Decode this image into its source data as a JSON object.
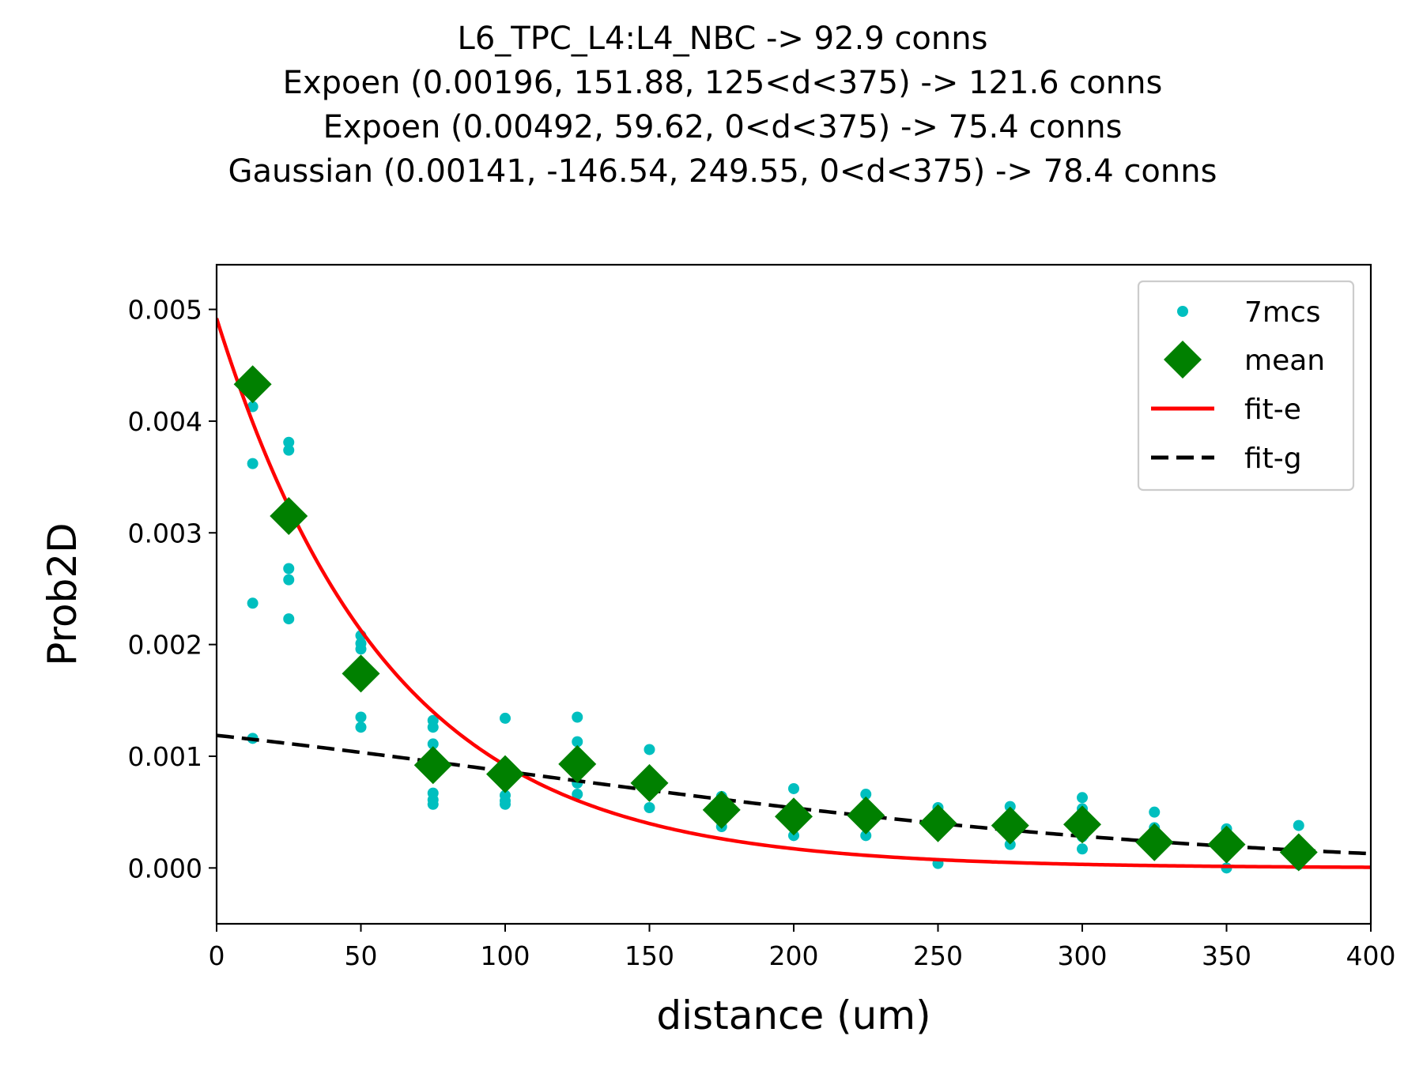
{
  "chart_data": {
    "type": "scatter",
    "title_lines": [
      "L6_TPC_L4:L4_NBC -> 92.9 conns",
      "Expoen (0.00196, 151.88, 125<d<375) -> 121.6 conns",
      "Expoen (0.00492, 59.62, 0<d<375) -> 75.4 conns",
      "Gaussian (0.00141, -146.54, 249.55, 0<d<375) -> 78.4 conns"
    ],
    "xlabel": "distance (um)",
    "ylabel": "Prob2D",
    "xlim": [
      0,
      400
    ],
    "ylim": [
      -0.0005,
      0.0054
    ],
    "xticks": [
      0,
      50,
      100,
      150,
      200,
      250,
      300,
      350,
      400
    ],
    "xtick_labels": [
      "0",
      "50",
      "100",
      "150",
      "200",
      "250",
      "300",
      "350",
      "400"
    ],
    "yticks": [
      0,
      0.001,
      0.002,
      0.003,
      0.004,
      0.005
    ],
    "ytick_labels": [
      "0.000",
      "0.001",
      "0.002",
      "0.003",
      "0.004",
      "0.005"
    ],
    "grid": false,
    "legend_position": "top-right",
    "series": [
      {
        "name": "7mcs",
        "kind": "points",
        "color": "#00bfbf",
        "points": [
          [
            12.5,
            0.00413
          ],
          [
            12.5,
            0.00362
          ],
          [
            12.5,
            0.00237
          ],
          [
            12.5,
            0.00116
          ],
          [
            25,
            0.00381
          ],
          [
            25,
            0.00374
          ],
          [
            25,
            0.00268
          ],
          [
            25,
            0.00258
          ],
          [
            25,
            0.00223
          ],
          [
            50,
            0.00208
          ],
          [
            50,
            0.00201
          ],
          [
            50,
            0.00196
          ],
          [
            50,
            0.00135
          ],
          [
            50,
            0.00126
          ],
          [
            75,
            0.00132
          ],
          [
            75,
            0.00126
          ],
          [
            75,
            0.00111
          ],
          [
            75,
            0.00067
          ],
          [
            75,
            0.00061
          ],
          [
            75,
            0.00057
          ],
          [
            100,
            0.00134
          ],
          [
            100,
            0.00065
          ],
          [
            100,
            0.0006
          ],
          [
            100,
            0.00057
          ],
          [
            125,
            0.00135
          ],
          [
            125,
            0.00113
          ],
          [
            125,
            0.00076
          ],
          [
            125,
            0.00066
          ],
          [
            150,
            0.00106
          ],
          [
            150,
            0.00054
          ],
          [
            175,
            0.00064
          ],
          [
            175,
            0.00045
          ],
          [
            175,
            0.00037
          ],
          [
            200,
            0.00071
          ],
          [
            200,
            0.00042
          ],
          [
            200,
            0.00029
          ],
          [
            225,
            0.00066
          ],
          [
            225,
            0.00048
          ],
          [
            225,
            0.00029
          ],
          [
            250,
            0.00054
          ],
          [
            250,
            0.00035
          ],
          [
            250,
            4e-05
          ],
          [
            275,
            0.00055
          ],
          [
            275,
            0.00037
          ],
          [
            275,
            0.00021
          ],
          [
            300,
            0.00063
          ],
          [
            300,
            0.00053
          ],
          [
            300,
            0.00028
          ],
          [
            300,
            0.00017
          ],
          [
            325,
            0.0005
          ],
          [
            325,
            0.00036
          ],
          [
            325,
            0.00022
          ],
          [
            350,
            0.00035
          ],
          [
            350,
            0.00023
          ],
          [
            350,
            0.0
          ],
          [
            375,
            0.00038
          ],
          [
            375,
            0.0002
          ],
          [
            375,
            3e-05
          ]
        ]
      },
      {
        "name": "mean",
        "kind": "diamonds",
        "color": "#008000",
        "points": [
          [
            12.5,
            0.00433
          ],
          [
            25,
            0.00315
          ],
          [
            50,
            0.00174
          ],
          [
            75,
            0.00092
          ],
          [
            100,
            0.00084
          ],
          [
            125,
            0.00093
          ],
          [
            150,
            0.00076
          ],
          [
            175,
            0.00052
          ],
          [
            200,
            0.00046
          ],
          [
            225,
            0.00047
          ],
          [
            250,
            0.0004
          ],
          [
            275,
            0.00038
          ],
          [
            300,
            0.00039
          ],
          [
            325,
            0.00023
          ],
          [
            350,
            0.00021
          ],
          [
            375,
            0.00014
          ]
        ]
      },
      {
        "name": "fit-e",
        "kind": "curve",
        "color": "#ff0000",
        "model": "exponential",
        "params": {
          "a": 0.00492,
          "tau": 59.62
        }
      },
      {
        "name": "fit-g",
        "kind": "curve-dashed",
        "color": "#000000",
        "model": "gaussian",
        "params": {
          "a": 0.00141,
          "mu": -146.54,
          "sigma": 249.55
        }
      }
    ]
  }
}
